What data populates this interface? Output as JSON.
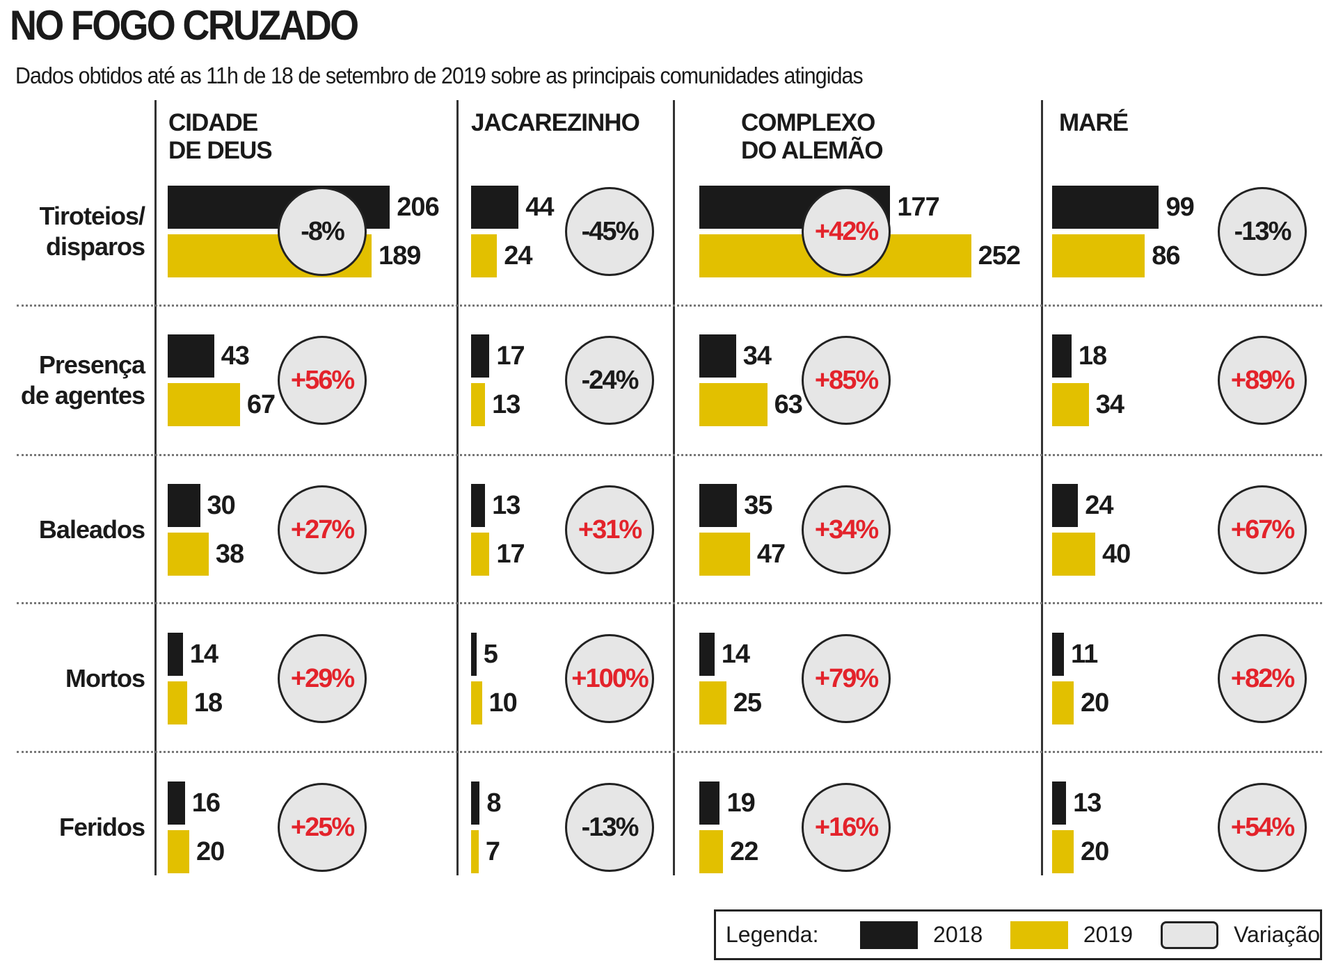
{
  "title": "NO FOGO CRUZADO",
  "subtitle": "Dados obtidos até as 11h de 18 de setembro de 2019 sobre as principais comunidades atingidas",
  "colors": {
    "y2018": "#1a1a1a",
    "y2019": "#e2c000",
    "variation_fill": "#e6e6e6",
    "positive": "#e3232b",
    "negative": "#1a1a1a"
  },
  "legend": {
    "title": "Legenda:",
    "items": [
      "2018",
      "2019",
      "Variação"
    ]
  },
  "chart_data": {
    "type": "bar",
    "title": "NO FOGO CRUZADO",
    "subtitle": "Dados obtidos até as 11h de 18 de setembro de 2019 sobre as principais comunidades atingidas",
    "communities": [
      "CIDADE\nDE DEUS",
      "JACAREZINHO",
      "COMPLEXO\nDO ALEMÃO",
      "MARÉ"
    ],
    "metrics": [
      "Tiroteios/\ndisparos",
      "Presença\nde agentes",
      "Baleados",
      "Mortos",
      "Feridos"
    ],
    "series": [
      {
        "name": "2018",
        "values": [
          [
            206,
            43,
            30,
            14,
            16
          ],
          [
            44,
            17,
            13,
            5,
            8
          ],
          [
            177,
            34,
            35,
            14,
            19
          ],
          [
            99,
            18,
            24,
            11,
            13
          ]
        ]
      },
      {
        "name": "2019",
        "values": [
          [
            189,
            67,
            38,
            18,
            20
          ],
          [
            24,
            13,
            17,
            10,
            7
          ],
          [
            252,
            63,
            47,
            25,
            22
          ],
          [
            86,
            34,
            40,
            20,
            20
          ]
        ]
      }
    ],
    "variation": [
      [
        "-8%",
        "+56%",
        "+27%",
        "+29%",
        "+25%"
      ],
      [
        "-45%",
        "-24%",
        "+31%",
        "+100%",
        "-13%"
      ],
      [
        "+42%",
        "+85%",
        "+34%",
        "+79%",
        "+16%"
      ],
      [
        "-13%",
        "+89%",
        "+67%",
        "+82%",
        "+54%"
      ]
    ],
    "legend_placement": "bottom-right"
  }
}
